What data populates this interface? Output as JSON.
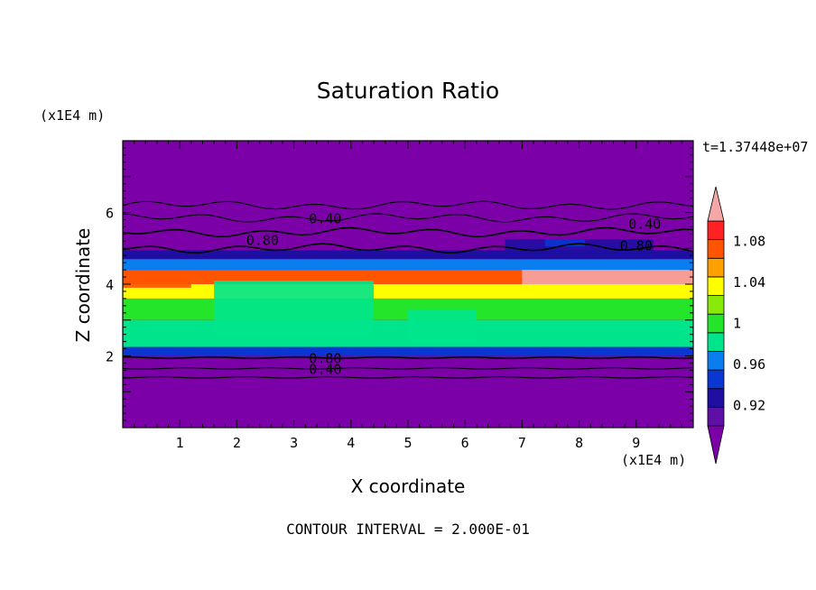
{
  "chart_data": {
    "type": "heatmap",
    "title": "Saturation Ratio",
    "time_label": "t=1.37448e+07",
    "xlabel": "X coordinate",
    "ylabel": "Z coordinate",
    "x_unit": "(x1E4 m)",
    "y_unit": "(x1E4 m)",
    "xlim": [
      0,
      10
    ],
    "ylim": [
      0,
      8
    ],
    "x_ticks": [
      1,
      2,
      3,
      4,
      5,
      6,
      7,
      8,
      9
    ],
    "y_ticks": [
      2,
      4,
      6
    ],
    "footer": "CONTOUR INTERVAL = 2.000E-01",
    "colorbar": {
      "levels": [
        0.9,
        0.92,
        0.94,
        0.96,
        0.98,
        1.0,
        1.02,
        1.04,
        1.06,
        1.08,
        1.1
      ],
      "tick_labels": [
        "0.92",
        "0.96",
        "1",
        "1.04",
        "1.08"
      ],
      "tick_values": [
        0.92,
        0.96,
        1.0,
        1.04,
        1.08
      ],
      "colors": [
        "#5e0fa5",
        "#1e0ea2",
        "#0a36d2",
        "#0a7eee",
        "#00e58c",
        "#24e52a",
        "#88ea08",
        "#ffff00",
        "#ffa000",
        "#ff5500",
        "#ff2222"
      ],
      "under_color": "#7b00a8",
      "over_color": "#f5a6a6"
    },
    "contour_labels": [
      {
        "text": "0.40",
        "x": 3.55,
        "z": 5.85
      },
      {
        "text": "0.80",
        "x": 2.45,
        "z": 5.25
      },
      {
        "text": "0.40",
        "x": 9.15,
        "z": 5.7
      },
      {
        "text": "0.80",
        "x": 9.0,
        "z": 5.1
      },
      {
        "text": "0.80",
        "x": 3.55,
        "z": 1.95
      },
      {
        "text": "0.40",
        "x": 3.55,
        "z": 1.65
      }
    ],
    "bands": [
      {
        "z0": 0,
        "z1": 2.0,
        "value": "under"
      },
      {
        "z0": 2.0,
        "z1": 2.25,
        "value": 0.95
      },
      {
        "z0": 2.25,
        "z1": 3.0,
        "value": 0.99
      },
      {
        "z0": 3.0,
        "z1": 3.6,
        "value": 1.01
      },
      {
        "z0": 3.6,
        "z1": 4.0,
        "value": 1.05
      },
      {
        "z0": 4.0,
        "z1": 4.4,
        "value": 1.09
      },
      {
        "z0": 4.4,
        "z1": 4.7,
        "value": 0.97
      },
      {
        "z0": 4.7,
        "z1": 4.95,
        "value": 0.92
      },
      {
        "z0": 4.95,
        "z1": 8.0,
        "value": "under"
      }
    ],
    "patches": [
      {
        "x0": 1.6,
        "x1": 4.4,
        "z0": 2.6,
        "z1": 4.1,
        "value": 0.99
      },
      {
        "x0": 5.0,
        "x1": 6.2,
        "z0": 2.4,
        "z1": 3.3,
        "value": 0.99
      },
      {
        "x0": 7.0,
        "x1": 10.0,
        "z0": 4.0,
        "z1": 4.4,
        "value": "over"
      },
      {
        "x0": 0.0,
        "x1": 1.2,
        "z0": 3.9,
        "z1": 4.3,
        "value": 1.09
      },
      {
        "x0": 6.7,
        "x1": 9.3,
        "z0": 4.7,
        "z1": 5.25,
        "value": 0.92
      },
      {
        "x0": 7.4,
        "x1": 8.1,
        "z0": 5.05,
        "z1": 5.25,
        "value": 0.95
      }
    ],
    "contours": [
      {
        "level": 0.4,
        "z": 6.2
      },
      {
        "level": 0.4,
        "z": 5.85
      },
      {
        "level": 0.8,
        "z": 5.45
      },
      {
        "level": 0.8,
        "z": 5.0
      },
      {
        "level": 0.8,
        "z": 1.95
      },
      {
        "level": 0.4,
        "z": 1.65
      },
      {
        "level": 0.4,
        "z": 1.4
      }
    ]
  }
}
